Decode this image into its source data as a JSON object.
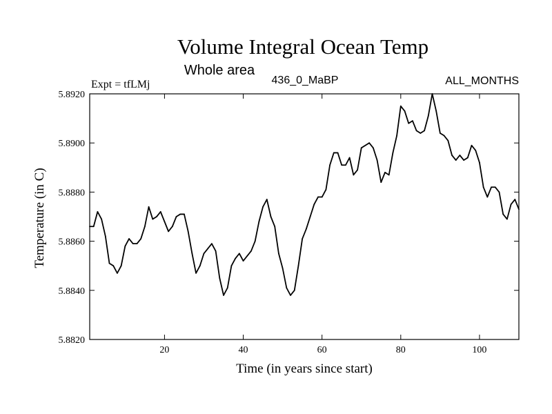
{
  "chart_data": {
    "type": "line",
    "title": "Volume Integral Ocean Temp",
    "subtitle": "Whole area",
    "left_label": "Expt = tfLMj",
    "center_label": "436_0_MaBP",
    "right_label": "ALL_MONTHS",
    "xlabel": "Time (in years since start)",
    "ylabel": "Temperature (in C)",
    "xlim": [
      1,
      110
    ],
    "ylim": [
      5.882,
      5.892
    ],
    "x_ticks": [
      20,
      40,
      60,
      80,
      100
    ],
    "x_tick_labels": [
      "20",
      "40",
      "60",
      "80",
      "100"
    ],
    "y_ticks": [
      5.882,
      5.884,
      5.886,
      5.888,
      5.89,
      5.892
    ],
    "y_tick_labels": [
      "5.8820",
      "5.8840",
      "5.8860",
      "5.8880",
      "5.8900",
      "5.8920"
    ],
    "series": [
      {
        "name": "Volume Integral Ocean Temp",
        "x": [
          1,
          2,
          3,
          4,
          5,
          6,
          7,
          8,
          9,
          10,
          11,
          12,
          13,
          14,
          15,
          16,
          17,
          18,
          19,
          20,
          21,
          22,
          23,
          24,
          25,
          26,
          27,
          28,
          29,
          30,
          31,
          32,
          33,
          34,
          35,
          36,
          37,
          38,
          39,
          40,
          41,
          42,
          43,
          44,
          45,
          46,
          47,
          48,
          49,
          50,
          51,
          52,
          53,
          54,
          55,
          56,
          57,
          58,
          59,
          60,
          61,
          62,
          63,
          64,
          65,
          66,
          67,
          68,
          69,
          70,
          71,
          72,
          73,
          74,
          75,
          76,
          77,
          78,
          79,
          80,
          81,
          82,
          83,
          84,
          85,
          86,
          87,
          88,
          89,
          90,
          91,
          92,
          93,
          94,
          95,
          96,
          97,
          98,
          99,
          100,
          101,
          102,
          103,
          104,
          105,
          106,
          107,
          108,
          109,
          110
        ],
        "values": [
          5.8866,
          5.8866,
          5.8872,
          5.8869,
          5.8862,
          5.8851,
          5.885,
          5.8847,
          5.885,
          5.8858,
          5.8861,
          5.8859,
          5.8859,
          5.8861,
          5.8866,
          5.8874,
          5.8869,
          5.887,
          5.8872,
          5.8868,
          5.8864,
          5.8866,
          5.887,
          5.8871,
          5.8871,
          5.8864,
          5.8855,
          5.8847,
          5.885,
          5.8855,
          5.8857,
          5.8859,
          5.8856,
          5.8845,
          5.8838,
          5.8841,
          5.885,
          5.8853,
          5.8855,
          5.8852,
          5.8854,
          5.8856,
          5.886,
          5.8868,
          5.8874,
          5.8877,
          5.887,
          5.8866,
          5.8855,
          5.8849,
          5.8841,
          5.8838,
          5.884,
          5.885,
          5.8861,
          5.8865,
          5.887,
          5.8875,
          5.8878,
          5.8878,
          5.8881,
          5.8891,
          5.8896,
          5.8896,
          5.8891,
          5.8891,
          5.8894,
          5.8887,
          5.8889,
          5.8898,
          5.8899,
          5.89,
          5.8898,
          5.8893,
          5.8884,
          5.8888,
          5.8887,
          5.8896,
          5.8903,
          5.8915,
          5.8913,
          5.8908,
          5.8909,
          5.8905,
          5.8904,
          5.8905,
          5.8911,
          5.892,
          5.8913,
          5.8904,
          5.8903,
          5.8901,
          5.8895,
          5.8893,
          5.8895,
          5.8893,
          5.8894,
          5.8899,
          5.8897,
          5.8892,
          5.8882,
          5.8878,
          5.8882,
          5.8882,
          5.888,
          5.8871,
          5.8869,
          5.8875,
          5.8877,
          5.8873
        ]
      }
    ]
  }
}
